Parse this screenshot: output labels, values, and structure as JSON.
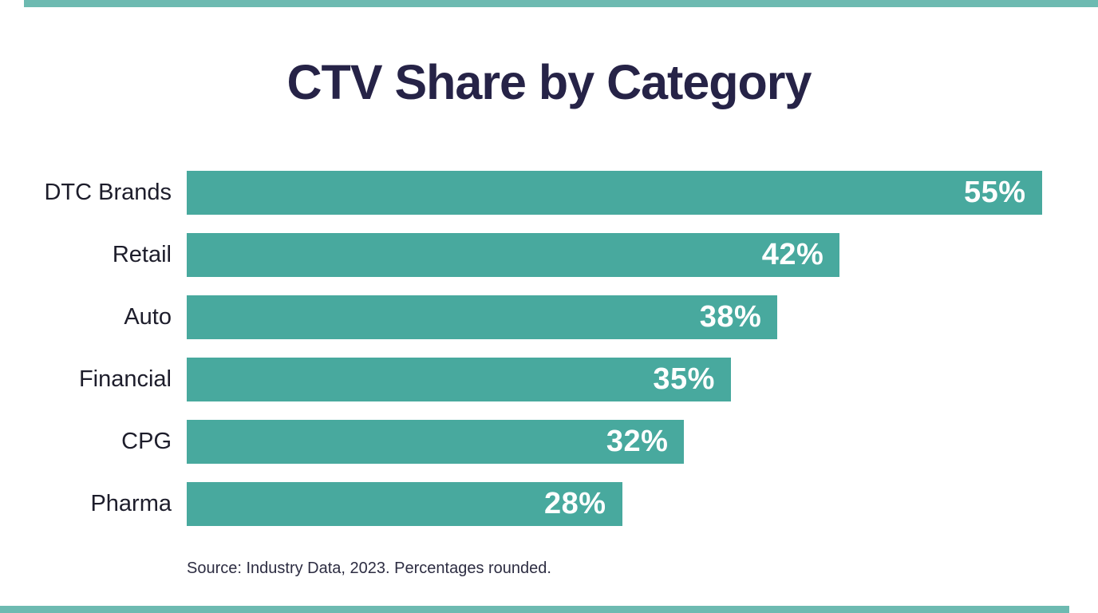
{
  "page": {
    "title": "CTV Share by Category",
    "source": "Source: Industry Data, 2023. Percentages rounded."
  },
  "colors": {
    "bar_teal": "#48a99e",
    "accent_strip_teal": "#48a99e",
    "title_navy": "#262347",
    "category_label": "#1d1d2b",
    "value_label_white": "#ffffff",
    "background": "#ffffff"
  },
  "chart_data": {
    "type": "bar",
    "orientation": "horizontal",
    "title": "CTV Share by Category",
    "categories": [
      "DTC Brands",
      "Retail",
      "Auto",
      "Financial",
      "CPG",
      "Pharma"
    ],
    "values": [
      55,
      42,
      38,
      35,
      32,
      28
    ],
    "value_suffix": "%",
    "value_labels": [
      "55%",
      "42%",
      "38%",
      "35%",
      "32%",
      "28%"
    ],
    "xlabel": "",
    "ylabel": "",
    "xlim": [
      0,
      56
    ],
    "grid": false,
    "legend": false,
    "value_label_position": "inside-end",
    "source": "Source: Industry Data, 2023. Percentages rounded."
  }
}
